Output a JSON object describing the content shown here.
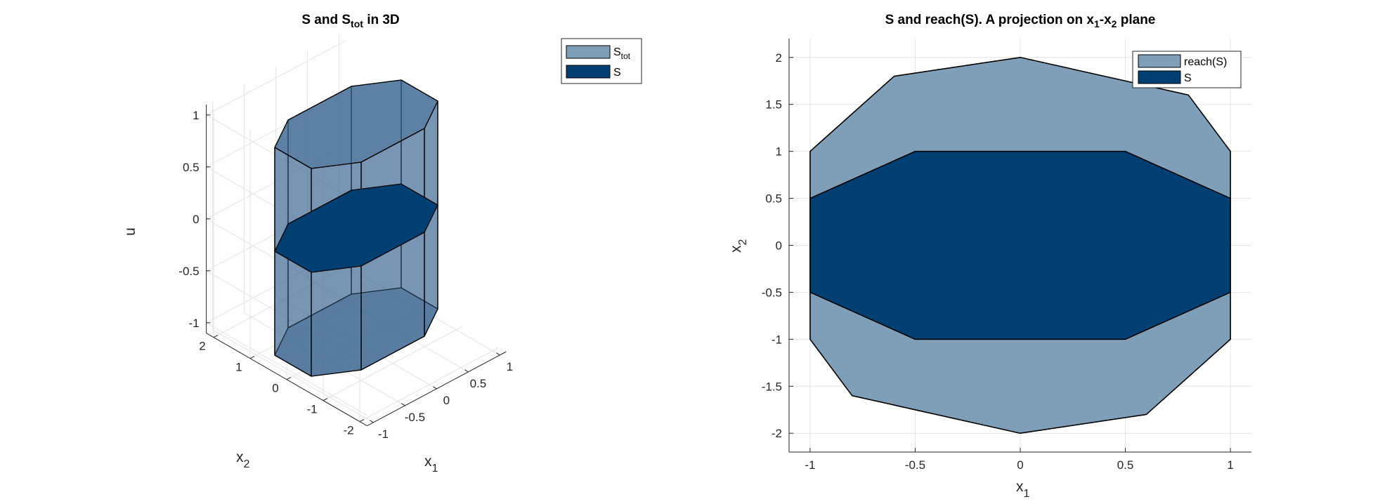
{
  "colors": {
    "s_tot_fill": "#3d6893",
    "s_tot_legend": "#7f9fb9",
    "s_fill": "#003f72",
    "reach_fill": "#7f9fb9",
    "grid": "#e3e3e3",
    "axis": "#262626"
  },
  "chart_data": [
    {
      "type": "3d-polytope",
      "title": {
        "main": "S and S",
        "sub": "tot",
        "suffix": " in 3D"
      },
      "xlabel": {
        "main": "x",
        "sub": "1"
      },
      "ylabel": {
        "main": "x",
        "sub": "2"
      },
      "zlabel": "u",
      "x_ticks": [
        -1,
        -0.5,
        0,
        0.5,
        1
      ],
      "y_ticks": [
        -2,
        -1,
        0,
        1,
        2
      ],
      "z_ticks": [
        -1,
        -0.5,
        0,
        0.5,
        1
      ],
      "legend": {
        "placement": "outside-top-right",
        "items": [
          {
            "name": "S",
            "sub": "tot",
            "color": "#7f9fb9"
          },
          {
            "name": "S",
            "sub": "",
            "color": "#003f72"
          }
        ]
      },
      "series": [
        {
          "name": "S_tot",
          "prism_u_range": [
            -1,
            1
          ],
          "cross_section_x1_x2": [
            [
              -1,
              0.5
            ],
            [
              -0.5,
              1
            ],
            [
              0.5,
              1
            ],
            [
              1,
              0.5
            ],
            [
              1,
              -0.5
            ],
            [
              0.5,
              -1
            ],
            [
              -0.5,
              -1
            ],
            [
              -1,
              -0.5
            ]
          ]
        },
        {
          "name": "S",
          "u": 0,
          "polygon_x1_x2": [
            [
              -1,
              0.5
            ],
            [
              -0.5,
              1
            ],
            [
              0.5,
              1
            ],
            [
              1,
              0.5
            ],
            [
              1,
              -0.5
            ],
            [
              0.5,
              -1
            ],
            [
              -0.5,
              -1
            ],
            [
              -1,
              -0.5
            ]
          ]
        }
      ],
      "grid": true
    },
    {
      "type": "polygon",
      "title": {
        "p1": "S and reach(S). A projection on x",
        "s1": "1",
        "p2": "-x",
        "s2": "2",
        "p3": " plane"
      },
      "xlabel": {
        "main": "x",
        "sub": "1"
      },
      "ylabel": {
        "main": "x",
        "sub": "2"
      },
      "xlim": [
        -1.1,
        1.1
      ],
      "ylim": [
        -2.2,
        2.2
      ],
      "x_ticks": [
        -1,
        -0.5,
        0,
        0.5,
        1
      ],
      "y_ticks": [
        -2,
        -1.5,
        -1,
        -0.5,
        0,
        0.5,
        1,
        1.5,
        2
      ],
      "legend": {
        "placement": "top-right",
        "items": [
          {
            "name": "reach(S)",
            "color": "#7f9fb9"
          },
          {
            "name": "S",
            "color": "#003f72"
          }
        ]
      },
      "series": [
        {
          "name": "reach(S)",
          "vertices": [
            [
              -1,
              1
            ],
            [
              -0.6,
              1.8
            ],
            [
              0,
              2
            ],
            [
              0.8,
              1.6
            ],
            [
              1,
              1
            ],
            [
              1,
              -1
            ],
            [
              0.6,
              -1.8
            ],
            [
              0,
              -2
            ],
            [
              -0.8,
              -1.6
            ],
            [
              -1,
              -1
            ]
          ]
        },
        {
          "name": "S",
          "vertices": [
            [
              -1,
              0.5
            ],
            [
              -0.5,
              1
            ],
            [
              0.5,
              1
            ],
            [
              1,
              0.5
            ],
            [
              1,
              -0.5
            ],
            [
              0.5,
              -1
            ],
            [
              -0.5,
              -1
            ],
            [
              -1,
              -0.5
            ]
          ]
        }
      ],
      "grid": true
    }
  ]
}
